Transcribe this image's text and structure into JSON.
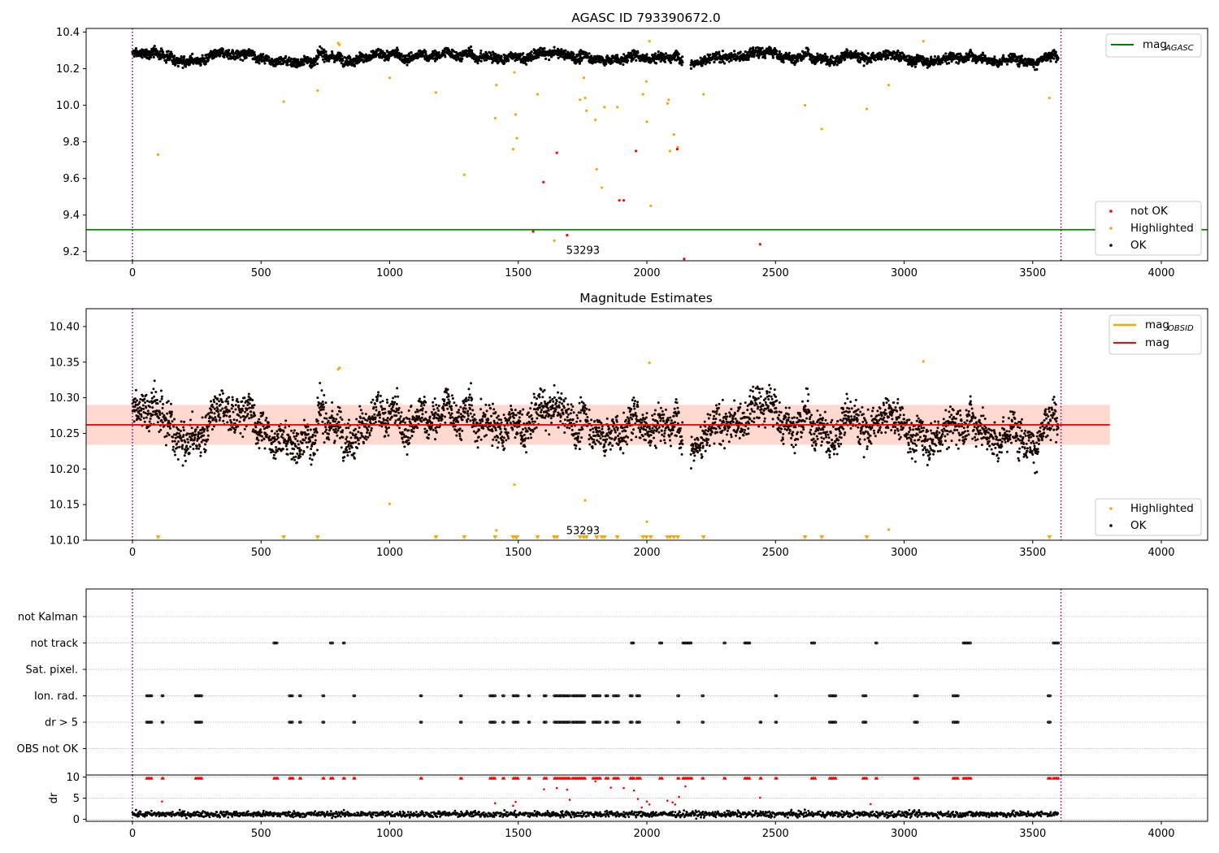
{
  "chart_data": [
    {
      "type": "scatter",
      "title": "AGASC ID 793390672.0",
      "xlim": [
        -180,
        4180
      ],
      "ylim": [
        9.15,
        10.42
      ],
      "xticks": [
        0,
        500,
        1000,
        1500,
        2000,
        2500,
        3000,
        3500,
        4000
      ],
      "yticks": [
        9.2,
        9.4,
        9.6,
        9.8,
        10.0,
        10.2,
        10.4
      ],
      "vlines": [
        0,
        3610
      ],
      "annotation": {
        "text": "53293",
        "x": 1800,
        "y": 9.215
      },
      "mag_agasc": 9.32,
      "series": [
        {
          "name": "not OK",
          "color": "#ff0000",
          "points": [
            [
              1558,
              9.31
            ],
            [
              1598,
              9.58
            ],
            [
              1650,
              9.74
            ],
            [
              1690,
              9.29
            ],
            [
              1958,
              9.75
            ],
            [
              1893,
              9.48
            ],
            [
              1910,
              9.48
            ],
            [
              2118,
              9.76
            ],
            [
              2145,
              9.16
            ],
            [
              2440,
              9.24
            ]
          ]
        },
        {
          "name": "Highlighted",
          "color": "#ffa500",
          "points": [
            [
              100,
              9.73
            ],
            [
              588,
              10.02
            ],
            [
              720,
              10.08
            ],
            [
              800,
              10.34
            ],
            [
              805,
              10.33
            ],
            [
              1000,
              10.15
            ],
            [
              1180,
              10.07
            ],
            [
              1290,
              9.62
            ],
            [
              1415,
              10.11
            ],
            [
              1410,
              9.93
            ],
            [
              1485,
              10.18
            ],
            [
              1480,
              9.76
            ],
            [
              1490,
              9.95
            ],
            [
              1495,
              9.82
            ],
            [
              1575,
              10.06
            ],
            [
              1640,
              9.26
            ],
            [
              1740,
              10.03
            ],
            [
              1755,
              10.15
            ],
            [
              1760,
              10.04
            ],
            [
              1765,
              9.97
            ],
            [
              1800,
              9.92
            ],
            [
              1805,
              9.65
            ],
            [
              1825,
              9.55
            ],
            [
              1835,
              9.99
            ],
            [
              1885,
              9.99
            ],
            [
              1985,
              10.06
            ],
            [
              1998,
              10.13
            ],
            [
              2000,
              9.91
            ],
            [
              2010,
              10.35
            ],
            [
              2015,
              9.45
            ],
            [
              2080,
              10.01
            ],
            [
              2085,
              10.03
            ],
            [
              2090,
              9.75
            ],
            [
              2105,
              9.84
            ],
            [
              2120,
              9.77
            ],
            [
              2220,
              10.06
            ],
            [
              2615,
              10.0
            ],
            [
              2680,
              9.87
            ],
            [
              2855,
              9.98
            ],
            [
              2940,
              10.11
            ],
            [
              3075,
              10.35
            ],
            [
              3565,
              10.04
            ]
          ]
        },
        {
          "name": "OK",
          "color": "#000000",
          "generated_from_model": true
        }
      ],
      "legend_top": [
        "mag_AGASC"
      ],
      "legend_bottom": [
        "not OK",
        "Highlighted",
        "OK"
      ],
      "gap_x": [
        2140,
        2170
      ]
    },
    {
      "type": "scatter",
      "title": "Magnitude Estimates",
      "xlim": [
        -180,
        4180
      ],
      "ylim": [
        10.1,
        10.425
      ],
      "xticks": [
        0,
        500,
        1000,
        1500,
        2000,
        2500,
        3000,
        3500,
        4000
      ],
      "yticks": [
        10.1,
        10.15,
        10.2,
        10.25,
        10.3,
        10.35,
        10.4
      ],
      "vlines": [
        0,
        3610
      ],
      "annotation": {
        "text": "53293",
        "x": 1800,
        "y": 10.112
      },
      "mag": 10.262,
      "mag_band": [
        10.234,
        10.29
      ],
      "mag_line_range": [
        -180,
        3800
      ],
      "mag_obsid": 10.262,
      "highlighted": [
        [
          800,
          10.34
        ],
        [
          805,
          10.342
        ],
        [
          1000,
          10.151
        ],
        [
          1415,
          10.114
        ],
        [
          1485,
          10.178
        ],
        [
          1760,
          10.156
        ],
        [
          2000,
          10.126
        ],
        [
          2010,
          10.349
        ],
        [
          2940,
          10.115
        ],
        [
          3075,
          10.351
        ]
      ],
      "below_axis_markers": [
        100,
        588,
        720,
        1180,
        1290,
        1410,
        1480,
        1490,
        1495,
        1575,
        1640,
        1650,
        1740,
        1755,
        1765,
        1805,
        1825,
        1835,
        1885,
        1985,
        1998,
        2015,
        2080,
        2090,
        2105,
        2120,
        2220,
        2615,
        2680,
        2855,
        3565
      ],
      "legend_top": [
        "mag_OBSID",
        "mag"
      ],
      "legend_bottom": [
        "Highlighted",
        "OK"
      ]
    },
    {
      "type": "scatter",
      "title": "",
      "xlim": [
        -180,
        4180
      ],
      "xticks": [
        0,
        500,
        1000,
        1500,
        2000,
        2500,
        3000,
        3500,
        4000
      ],
      "vlines": [
        0,
        3610
      ],
      "flag_rows": [
        "not Kalman",
        "not track",
        "Sat. pixel.",
        "Ion. rad.",
        "dr > 5",
        "OBS not OK"
      ],
      "flags": {
        "not track": [
          [
            550,
            565
          ],
          [
            770,
            780
          ],
          [
            820,
            825
          ],
          [
            1940,
            1950
          ],
          [
            2050,
            2060
          ],
          [
            2140,
            2175
          ],
          [
            2300,
            2305
          ],
          [
            2380,
            2400
          ],
          [
            2640,
            2655
          ],
          [
            2890,
            2895
          ],
          [
            3230,
            3260
          ],
          [
            3580,
            3600
          ]
        ],
        "Ion. rad.": [
          [
            55,
            75
          ],
          [
            115,
            120
          ],
          [
            245,
            270
          ],
          [
            610,
            625
          ],
          [
            650,
            655
          ],
          [
            740,
            745
          ],
          [
            860,
            865
          ],
          [
            1120,
            1125
          ],
          [
            1275,
            1280
          ],
          [
            1390,
            1410
          ],
          [
            1440,
            1445
          ],
          [
            1480,
            1500
          ],
          [
            1540,
            1545
          ],
          [
            1600,
            1610
          ],
          [
            1640,
            1700
          ],
          [
            1710,
            1760
          ],
          [
            1790,
            1820
          ],
          [
            1840,
            1850
          ],
          [
            1870,
            1890
          ],
          [
            1935,
            1945
          ],
          [
            1960,
            1975
          ],
          [
            2120,
            2125
          ],
          [
            2215,
            2220
          ],
          [
            2500,
            2505
          ],
          [
            2710,
            2735
          ],
          [
            2840,
            2855
          ],
          [
            3040,
            3055
          ],
          [
            3190,
            3210
          ],
          [
            3560,
            3570
          ]
        ],
        "dr > 5": [
          [
            55,
            75
          ],
          [
            115,
            120
          ],
          [
            245,
            270
          ],
          [
            610,
            625
          ],
          [
            650,
            655
          ],
          [
            740,
            745
          ],
          [
            860,
            865
          ],
          [
            1120,
            1125
          ],
          [
            1275,
            1280
          ],
          [
            1390,
            1410
          ],
          [
            1440,
            1445
          ],
          [
            1480,
            1500
          ],
          [
            1540,
            1545
          ],
          [
            1600,
            1610
          ],
          [
            1640,
            1700
          ],
          [
            1710,
            1760
          ],
          [
            1790,
            1820
          ],
          [
            1840,
            1850
          ],
          [
            1870,
            1890
          ],
          [
            1935,
            1945
          ],
          [
            1960,
            1975
          ],
          [
            2120,
            2125
          ],
          [
            2215,
            2220
          ],
          [
            2440,
            2445
          ],
          [
            2500,
            2505
          ],
          [
            2710,
            2735
          ],
          [
            2840,
            2855
          ],
          [
            3040,
            3055
          ],
          [
            3190,
            3210
          ],
          [
            3560,
            3570
          ]
        ]
      },
      "dr_axis": {
        "label": "dr",
        "ylim": [
          -0.5,
          10.5
        ],
        "yticks": [
          0,
          5,
          10
        ]
      },
      "dr_outliers": [
        [
          115,
          4.2
        ],
        [
          1410,
          3.8
        ],
        [
          1480,
          3.2
        ],
        [
          1490,
          4.1
        ],
        [
          1600,
          7.1
        ],
        [
          1650,
          7.4
        ],
        [
          1690,
          7.0
        ],
        [
          1700,
          4.6
        ],
        [
          1800,
          9.0
        ],
        [
          1860,
          7.5
        ],
        [
          1910,
          7.4
        ],
        [
          1950,
          6.8
        ],
        [
          1965,
          4.8
        ],
        [
          1980,
          2.8
        ],
        [
          2000,
          4.2
        ],
        [
          2010,
          3.5
        ],
        [
          2080,
          4.4
        ],
        [
          2100,
          4.0
        ],
        [
          2110,
          3.5
        ],
        [
          2125,
          5.3
        ],
        [
          2150,
          7.8
        ],
        [
          2440,
          5.1
        ],
        [
          2870,
          3.6
        ]
      ]
    }
  ],
  "legend_labels": {
    "mag_agasc": "mag",
    "mag_agasc_sub": "AGASC",
    "mag_obsid": "mag",
    "mag_obsid_sub": "OBSID",
    "mag": "mag",
    "not_ok": "not OK",
    "highlighted": "Highlighted",
    "ok": "OK"
  },
  "colors": {
    "ok": "#000000",
    "highlighted": "#ffa500",
    "not_ok": "#ff0000",
    "agasc": "#008000",
    "obsid": "#ffa500",
    "mag": "#ff0000",
    "band": "#ffd2c8",
    "vline": "#800080"
  }
}
